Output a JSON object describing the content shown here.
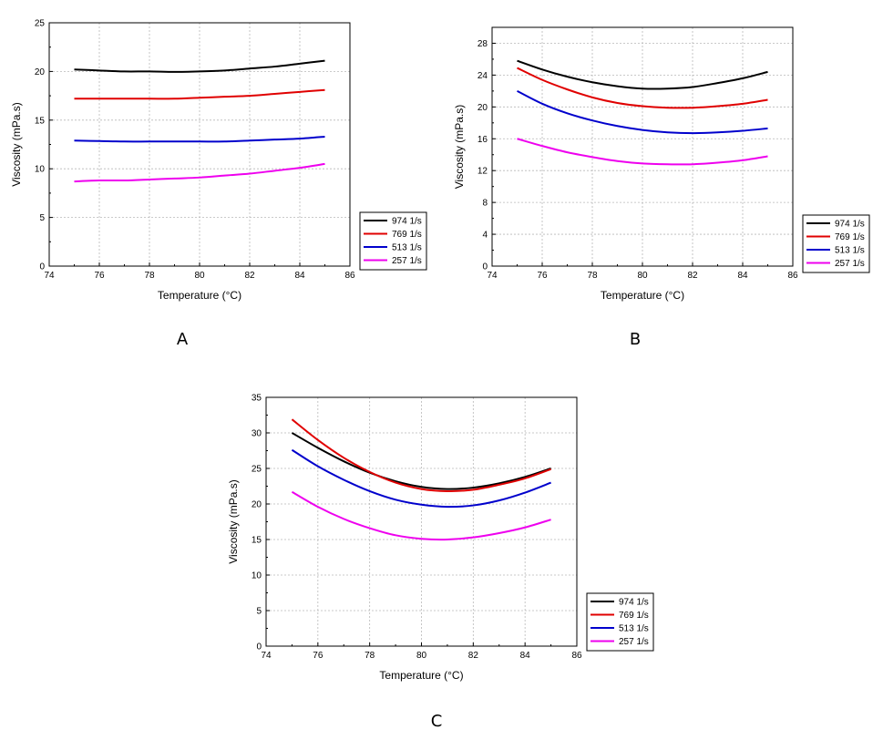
{
  "chart_data": [
    {
      "type": "line",
      "panel_label": "A",
      "xlabel": "Temperature (°C)",
      "ylabel": "Viscosity (mPa.s)",
      "xlim": [
        74,
        86
      ],
      "ylim": [
        0,
        25
      ],
      "xticks": [
        74,
        76,
        78,
        80,
        82,
        84,
        86
      ],
      "yticks": [
        0,
        5,
        10,
        15,
        20,
        25
      ],
      "grid": true,
      "legend": "outside-bottom-right",
      "x": [
        75,
        76,
        77,
        78,
        79,
        80,
        81,
        82,
        83,
        84,
        85
      ],
      "series": [
        {
          "name": "974 1/s",
          "color": "#000000",
          "values": [
            20.2,
            20.1,
            20.0,
            20.0,
            19.95,
            20.0,
            20.1,
            20.3,
            20.5,
            20.8,
            21.1
          ]
        },
        {
          "name": "769 1/s",
          "color": "#e00000",
          "values": [
            17.2,
            17.2,
            17.2,
            17.2,
            17.2,
            17.3,
            17.4,
            17.5,
            17.7,
            17.9,
            18.1
          ]
        },
        {
          "name": "513 1/s",
          "color": "#0000cc",
          "values": [
            12.9,
            12.85,
            12.8,
            12.8,
            12.8,
            12.8,
            12.8,
            12.9,
            13.0,
            13.1,
            13.3
          ]
        },
        {
          "name": "257 1/s",
          "color": "#ee00ee",
          "values": [
            8.7,
            8.8,
            8.8,
            8.9,
            9.0,
            9.1,
            9.3,
            9.5,
            9.8,
            10.1,
            10.5
          ]
        }
      ]
    },
    {
      "type": "line",
      "panel_label": "B",
      "xlabel": "Temperature (°C)",
      "ylabel": "Viscosity (mPa.s)",
      "xlim": [
        74,
        86
      ],
      "ylim": [
        0,
        30
      ],
      "xticks": [
        74,
        76,
        78,
        80,
        82,
        84,
        86
      ],
      "yticks": [
        0,
        4,
        8,
        12,
        16,
        20,
        24,
        28
      ],
      "grid": true,
      "legend": "outside-bottom-right",
      "x": [
        75,
        76,
        77,
        78,
        79,
        80,
        81,
        82,
        83,
        84,
        85
      ],
      "series": [
        {
          "name": "974 1/s",
          "color": "#000000",
          "values": [
            25.8,
            24.7,
            23.8,
            23.1,
            22.6,
            22.3,
            22.3,
            22.5,
            23.0,
            23.6,
            24.4
          ]
        },
        {
          "name": "769 1/s",
          "color": "#e00000",
          "values": [
            24.9,
            23.4,
            22.2,
            21.2,
            20.5,
            20.1,
            19.9,
            19.9,
            20.1,
            20.4,
            20.9
          ]
        },
        {
          "name": "513 1/s",
          "color": "#0000cc",
          "values": [
            22.0,
            20.4,
            19.2,
            18.3,
            17.6,
            17.1,
            16.8,
            16.7,
            16.8,
            17.0,
            17.3
          ]
        },
        {
          "name": "257 1/s",
          "color": "#ee00ee",
          "values": [
            16.0,
            15.1,
            14.3,
            13.7,
            13.2,
            12.9,
            12.8,
            12.8,
            13.0,
            13.3,
            13.8
          ]
        }
      ]
    },
    {
      "type": "line",
      "panel_label": "C",
      "xlabel": "Temperature (°C)",
      "ylabel": "Viscosity (mPa.s)",
      "xlim": [
        74,
        86
      ],
      "ylim": [
        0,
        35
      ],
      "xticks": [
        74,
        76,
        78,
        80,
        82,
        84,
        86
      ],
      "yticks": [
        0,
        5,
        10,
        15,
        20,
        25,
        30,
        35
      ],
      "grid": true,
      "legend": "outside-bottom-right",
      "x": [
        75,
        76,
        77,
        78,
        79,
        80,
        81,
        82,
        83,
        84,
        85
      ],
      "series": [
        {
          "name": "974 1/s",
          "color": "#000000",
          "values": [
            30.0,
            27.9,
            26.0,
            24.4,
            23.2,
            22.4,
            22.1,
            22.3,
            22.9,
            23.8,
            25.0
          ]
        },
        {
          "name": "769 1/s",
          "color": "#e00000",
          "values": [
            31.9,
            29.0,
            26.5,
            24.5,
            23.0,
            22.1,
            21.8,
            22.0,
            22.7,
            23.6,
            24.9
          ]
        },
        {
          "name": "513 1/s",
          "color": "#0000cc",
          "values": [
            27.6,
            25.3,
            23.4,
            21.8,
            20.6,
            19.9,
            19.6,
            19.8,
            20.5,
            21.6,
            23.0
          ]
        },
        {
          "name": "257 1/s",
          "color": "#ee00ee",
          "values": [
            21.7,
            19.6,
            17.9,
            16.6,
            15.6,
            15.1,
            15.0,
            15.3,
            15.9,
            16.7,
            17.8
          ]
        }
      ]
    }
  ]
}
